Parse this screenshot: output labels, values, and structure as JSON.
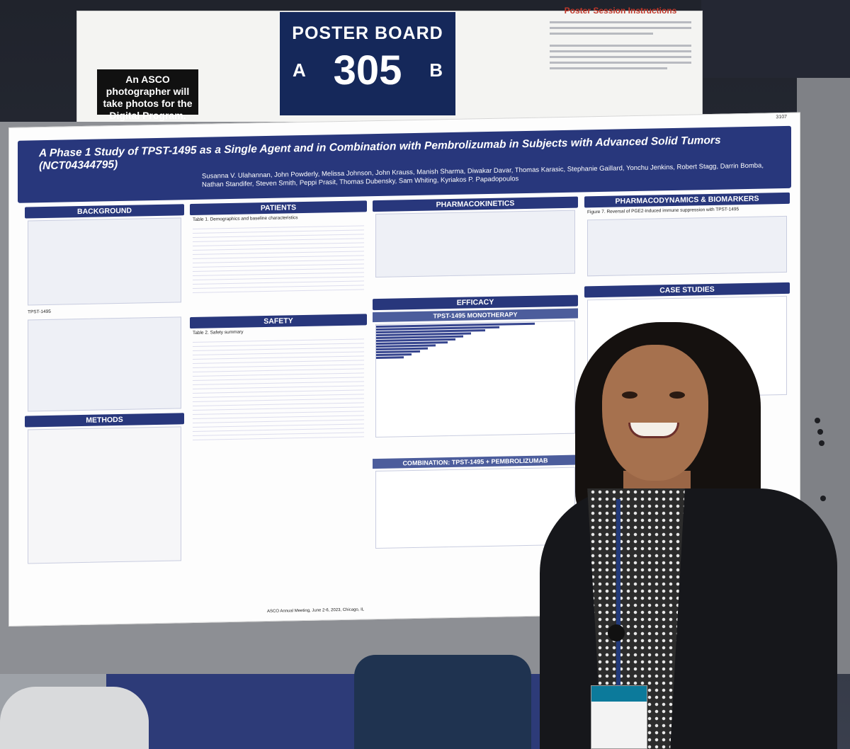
{
  "sign": {
    "photo_note": "An ASCO photographer will take photos for the Digital Program.",
    "board_title": "POSTER BOARD",
    "board_number": "305",
    "side_left": "A",
    "side_right": "B",
    "session_title": "Poster Session Instructions"
  },
  "poster": {
    "code": "3107",
    "title": "A Phase 1 Study of TPST-1495 as a Single Agent and in Combination with Pembrolizumab in Subjects with Advanced Solid Tumors (NCT04344795)",
    "authors": "Susanna V. Ulahannan, John Powderly, Melissa Johnson, John Krauss, Manish Sharma, Diwakar Davar, Thomas Karasic, Stephanie Gaillard, Yonchu Jenkins, Robert Stagg, Darrin Bomba, Nathan Standifer, Steven Smith, Peppi Prasit, Thomas Dubensky, Sam Whiting, Kyriakos P. Papadopoulos",
    "sections": {
      "background": "BACKGROUND",
      "methods": "METHODS",
      "patients": "PATIENTS",
      "safety": "SAFETY",
      "pk": "PHARMACOKINETICS",
      "efficacy": "EFFICACY",
      "monotherapy": "TPST-1495 MONOTHERAPY",
      "combination": "COMBINATION: TPST-1495 + PEMBROLIZUMAB",
      "pd": "PHARMACODYNAMICS & BIOMARKERS",
      "case": "CASE STUDIES"
    },
    "tpst_label": "TPST-1495",
    "table1_caption": "Table 1. Demographics and baseline characteristics",
    "table2_caption": "Table 2. Safety summary",
    "fig_reversal": "Figure 7. Reversal of PGE2-induced immune suppression with TPST-1495",
    "footer": "ASCO Annual Meeting, June 2-6, 2023, Chicago, IL"
  }
}
